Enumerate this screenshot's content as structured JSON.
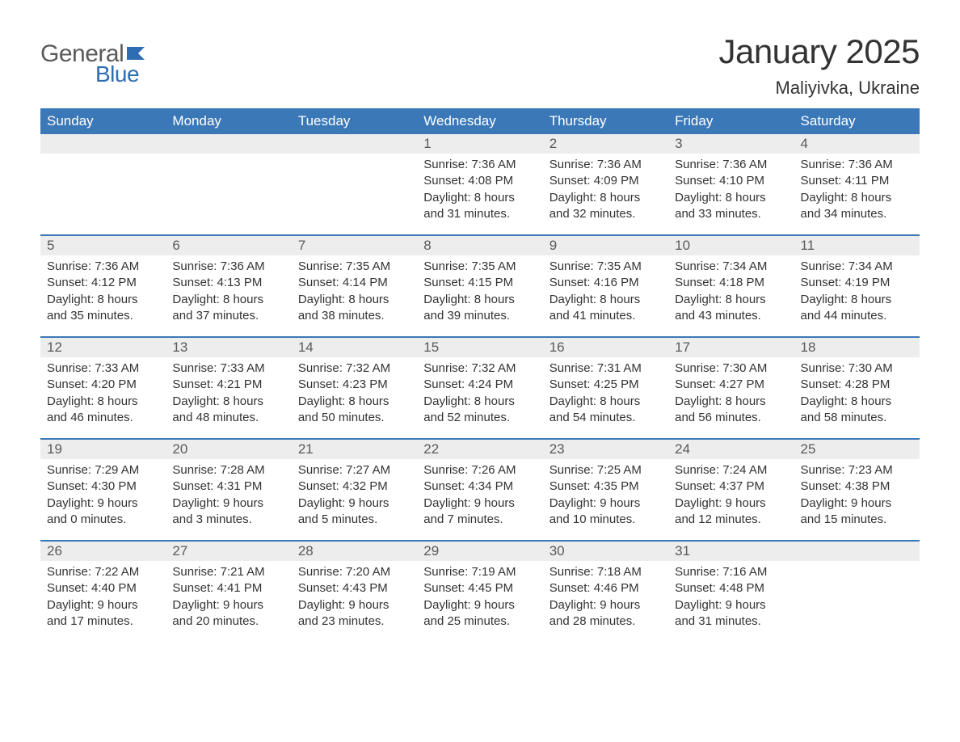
{
  "logo": {
    "general": "General",
    "blue": "Blue",
    "general_color": "#5a5a5a",
    "blue_color": "#2f6db2",
    "flag_color": "#2f6db2"
  },
  "title": "January 2025",
  "location": "Maliyivka, Ukraine",
  "colors": {
    "header_bg": "#3b78b8",
    "header_text": "#ffffff",
    "daynum_bg": "#ededed",
    "daynum_text": "#5a5a5a",
    "body_text": "#333333",
    "row_border": "#3b78b8",
    "page_bg": "#ffffff"
  },
  "typography": {
    "title_fontsize": 42,
    "location_fontsize": 22,
    "weekday_fontsize": 17,
    "daynum_fontsize": 17,
    "detail_fontsize": 15
  },
  "weekdays": [
    "Sunday",
    "Monday",
    "Tuesday",
    "Wednesday",
    "Thursday",
    "Friday",
    "Saturday"
  ],
  "weeks": [
    [
      {
        "day": "",
        "sunrise": "",
        "sunset": "",
        "daylight1": "",
        "daylight2": ""
      },
      {
        "day": "",
        "sunrise": "",
        "sunset": "",
        "daylight1": "",
        "daylight2": ""
      },
      {
        "day": "",
        "sunrise": "",
        "sunset": "",
        "daylight1": "",
        "daylight2": ""
      },
      {
        "day": "1",
        "sunrise": "Sunrise: 7:36 AM",
        "sunset": "Sunset: 4:08 PM",
        "daylight1": "Daylight: 8 hours",
        "daylight2": "and 31 minutes."
      },
      {
        "day": "2",
        "sunrise": "Sunrise: 7:36 AM",
        "sunset": "Sunset: 4:09 PM",
        "daylight1": "Daylight: 8 hours",
        "daylight2": "and 32 minutes."
      },
      {
        "day": "3",
        "sunrise": "Sunrise: 7:36 AM",
        "sunset": "Sunset: 4:10 PM",
        "daylight1": "Daylight: 8 hours",
        "daylight2": "and 33 minutes."
      },
      {
        "day": "4",
        "sunrise": "Sunrise: 7:36 AM",
        "sunset": "Sunset: 4:11 PM",
        "daylight1": "Daylight: 8 hours",
        "daylight2": "and 34 minutes."
      }
    ],
    [
      {
        "day": "5",
        "sunrise": "Sunrise: 7:36 AM",
        "sunset": "Sunset: 4:12 PM",
        "daylight1": "Daylight: 8 hours",
        "daylight2": "and 35 minutes."
      },
      {
        "day": "6",
        "sunrise": "Sunrise: 7:36 AM",
        "sunset": "Sunset: 4:13 PM",
        "daylight1": "Daylight: 8 hours",
        "daylight2": "and 37 minutes."
      },
      {
        "day": "7",
        "sunrise": "Sunrise: 7:35 AM",
        "sunset": "Sunset: 4:14 PM",
        "daylight1": "Daylight: 8 hours",
        "daylight2": "and 38 minutes."
      },
      {
        "day": "8",
        "sunrise": "Sunrise: 7:35 AM",
        "sunset": "Sunset: 4:15 PM",
        "daylight1": "Daylight: 8 hours",
        "daylight2": "and 39 minutes."
      },
      {
        "day": "9",
        "sunrise": "Sunrise: 7:35 AM",
        "sunset": "Sunset: 4:16 PM",
        "daylight1": "Daylight: 8 hours",
        "daylight2": "and 41 minutes."
      },
      {
        "day": "10",
        "sunrise": "Sunrise: 7:34 AM",
        "sunset": "Sunset: 4:18 PM",
        "daylight1": "Daylight: 8 hours",
        "daylight2": "and 43 minutes."
      },
      {
        "day": "11",
        "sunrise": "Sunrise: 7:34 AM",
        "sunset": "Sunset: 4:19 PM",
        "daylight1": "Daylight: 8 hours",
        "daylight2": "and 44 minutes."
      }
    ],
    [
      {
        "day": "12",
        "sunrise": "Sunrise: 7:33 AM",
        "sunset": "Sunset: 4:20 PM",
        "daylight1": "Daylight: 8 hours",
        "daylight2": "and 46 minutes."
      },
      {
        "day": "13",
        "sunrise": "Sunrise: 7:33 AM",
        "sunset": "Sunset: 4:21 PM",
        "daylight1": "Daylight: 8 hours",
        "daylight2": "and 48 minutes."
      },
      {
        "day": "14",
        "sunrise": "Sunrise: 7:32 AM",
        "sunset": "Sunset: 4:23 PM",
        "daylight1": "Daylight: 8 hours",
        "daylight2": "and 50 minutes."
      },
      {
        "day": "15",
        "sunrise": "Sunrise: 7:32 AM",
        "sunset": "Sunset: 4:24 PM",
        "daylight1": "Daylight: 8 hours",
        "daylight2": "and 52 minutes."
      },
      {
        "day": "16",
        "sunrise": "Sunrise: 7:31 AM",
        "sunset": "Sunset: 4:25 PM",
        "daylight1": "Daylight: 8 hours",
        "daylight2": "and 54 minutes."
      },
      {
        "day": "17",
        "sunrise": "Sunrise: 7:30 AM",
        "sunset": "Sunset: 4:27 PM",
        "daylight1": "Daylight: 8 hours",
        "daylight2": "and 56 minutes."
      },
      {
        "day": "18",
        "sunrise": "Sunrise: 7:30 AM",
        "sunset": "Sunset: 4:28 PM",
        "daylight1": "Daylight: 8 hours",
        "daylight2": "and 58 minutes."
      }
    ],
    [
      {
        "day": "19",
        "sunrise": "Sunrise: 7:29 AM",
        "sunset": "Sunset: 4:30 PM",
        "daylight1": "Daylight: 9 hours",
        "daylight2": "and 0 minutes."
      },
      {
        "day": "20",
        "sunrise": "Sunrise: 7:28 AM",
        "sunset": "Sunset: 4:31 PM",
        "daylight1": "Daylight: 9 hours",
        "daylight2": "and 3 minutes."
      },
      {
        "day": "21",
        "sunrise": "Sunrise: 7:27 AM",
        "sunset": "Sunset: 4:32 PM",
        "daylight1": "Daylight: 9 hours",
        "daylight2": "and 5 minutes."
      },
      {
        "day": "22",
        "sunrise": "Sunrise: 7:26 AM",
        "sunset": "Sunset: 4:34 PM",
        "daylight1": "Daylight: 9 hours",
        "daylight2": "and 7 minutes."
      },
      {
        "day": "23",
        "sunrise": "Sunrise: 7:25 AM",
        "sunset": "Sunset: 4:35 PM",
        "daylight1": "Daylight: 9 hours",
        "daylight2": "and 10 minutes."
      },
      {
        "day": "24",
        "sunrise": "Sunrise: 7:24 AM",
        "sunset": "Sunset: 4:37 PM",
        "daylight1": "Daylight: 9 hours",
        "daylight2": "and 12 minutes."
      },
      {
        "day": "25",
        "sunrise": "Sunrise: 7:23 AM",
        "sunset": "Sunset: 4:38 PM",
        "daylight1": "Daylight: 9 hours",
        "daylight2": "and 15 minutes."
      }
    ],
    [
      {
        "day": "26",
        "sunrise": "Sunrise: 7:22 AM",
        "sunset": "Sunset: 4:40 PM",
        "daylight1": "Daylight: 9 hours",
        "daylight2": "and 17 minutes."
      },
      {
        "day": "27",
        "sunrise": "Sunrise: 7:21 AM",
        "sunset": "Sunset: 4:41 PM",
        "daylight1": "Daylight: 9 hours",
        "daylight2": "and 20 minutes."
      },
      {
        "day": "28",
        "sunrise": "Sunrise: 7:20 AM",
        "sunset": "Sunset: 4:43 PM",
        "daylight1": "Daylight: 9 hours",
        "daylight2": "and 23 minutes."
      },
      {
        "day": "29",
        "sunrise": "Sunrise: 7:19 AM",
        "sunset": "Sunset: 4:45 PM",
        "daylight1": "Daylight: 9 hours",
        "daylight2": "and 25 minutes."
      },
      {
        "day": "30",
        "sunrise": "Sunrise: 7:18 AM",
        "sunset": "Sunset: 4:46 PM",
        "daylight1": "Daylight: 9 hours",
        "daylight2": "and 28 minutes."
      },
      {
        "day": "31",
        "sunrise": "Sunrise: 7:16 AM",
        "sunset": "Sunset: 4:48 PM",
        "daylight1": "Daylight: 9 hours",
        "daylight2": "and 31 minutes."
      },
      {
        "day": "",
        "sunrise": "",
        "sunset": "",
        "daylight1": "",
        "daylight2": ""
      }
    ]
  ]
}
